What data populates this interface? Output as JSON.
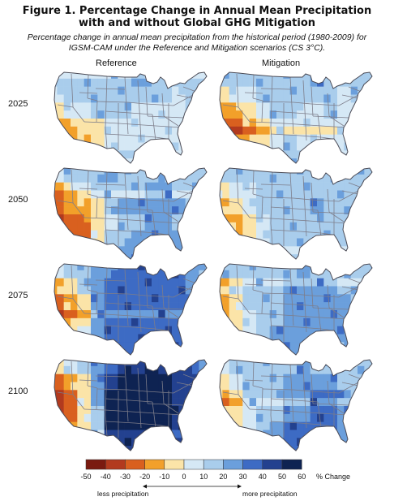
{
  "figure": {
    "title_line1": "Figure 1. Percentage Change in Annual Mean Precipitation",
    "title_line2": "with and without Global GHG Mitigation",
    "subtitle_line1": "Percentage change in annual mean precipitation from the historical period (1980-2009) for",
    "subtitle_line2": "IGSM-CAM under the Reference and Mitigation scenarios (CS 3°C)."
  },
  "columns": [
    "Reference",
    "Mitigation"
  ],
  "rows": [
    "2025",
    "2050",
    "2075",
    "2100"
  ],
  "legend": {
    "ticks": [
      "-50",
      "-40",
      "-30",
      "-20",
      "-10",
      "0",
      "10",
      "20",
      "30",
      "40",
      "50",
      "60"
    ],
    "title": "% Change",
    "colors": [
      "#7a1a10",
      "#b23a1e",
      "#d9601f",
      "#f2a02a",
      "#fbe4a8",
      "#d5e8f5",
      "#a9cdec",
      "#6b9fdc",
      "#3d6bc4",
      "#23418f",
      "#0e2352"
    ],
    "less_label": "less precipitation",
    "more_label": "more precipitation"
  },
  "map_colors": {
    "border": "#7d7d8a",
    "outline": "#4a4a55"
  }
}
